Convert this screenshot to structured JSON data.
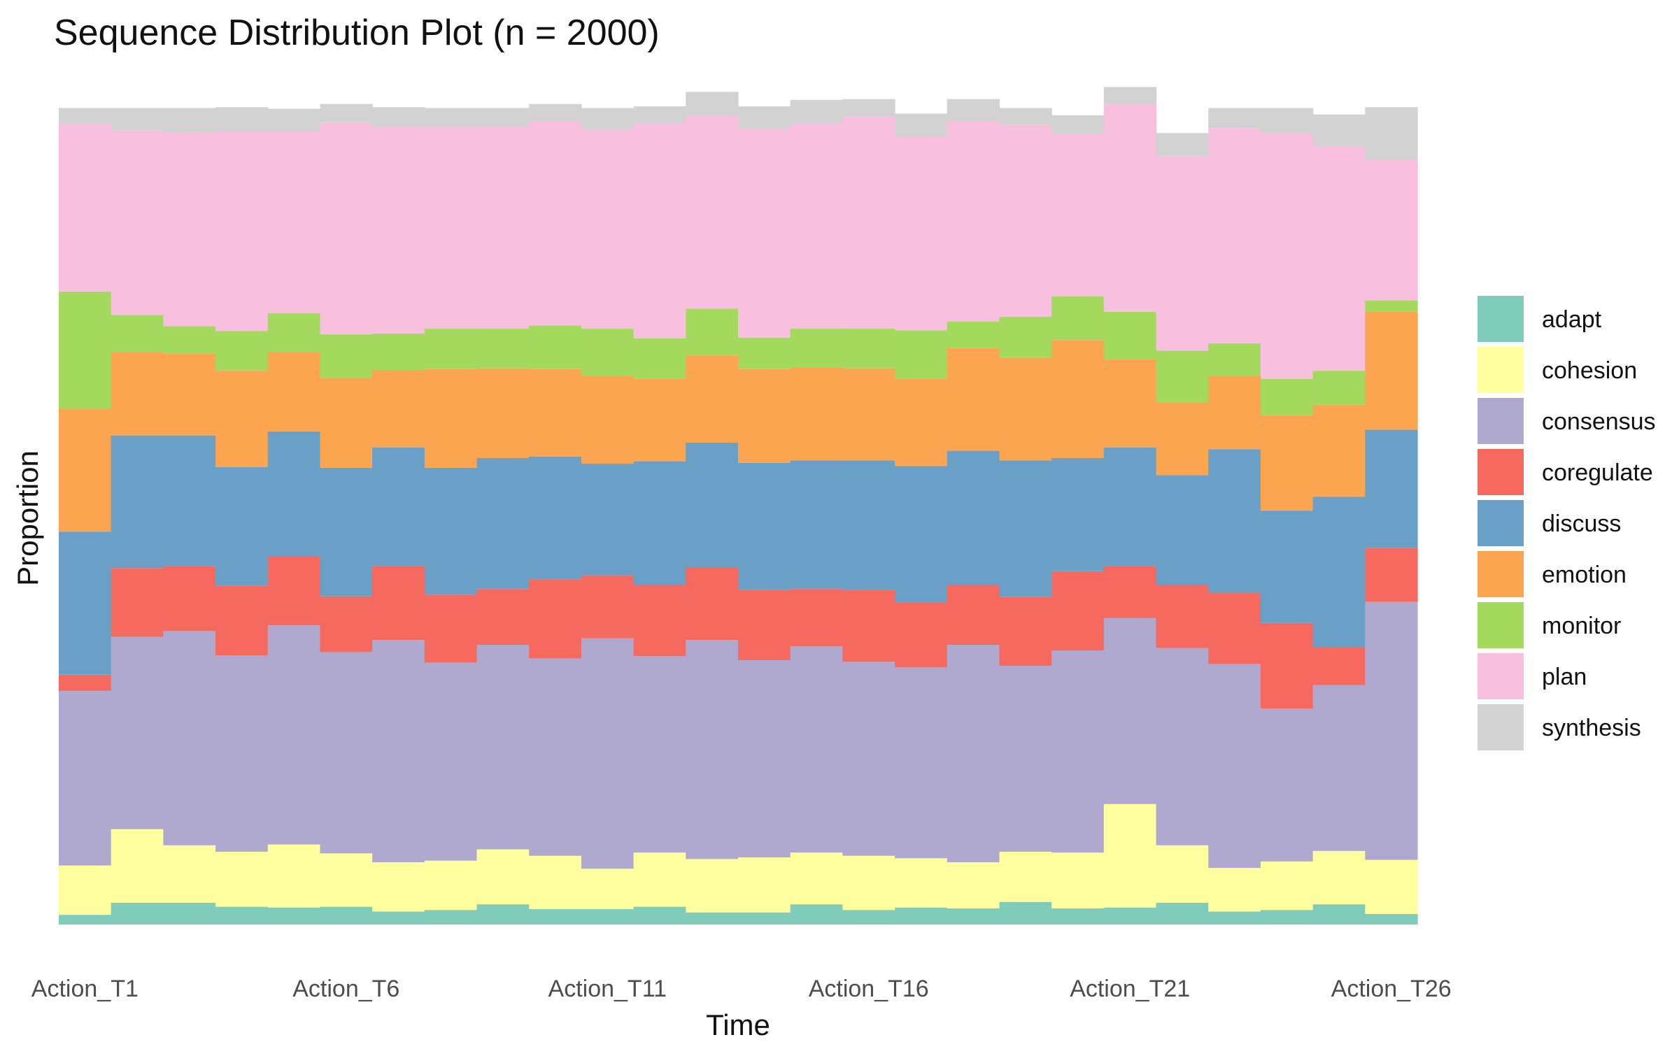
{
  "chart_data": {
    "type": "area",
    "title": "Sequence Distribution Plot (n = 2000)",
    "xlabel": "Time",
    "ylabel": "Proportion",
    "ylim": [
      0,
      1
    ],
    "grid": false,
    "legend_position": "right",
    "tick_labels": [
      "Action_T1",
      "Action_T6",
      "Action_T11",
      "Action_T16",
      "Action_T21",
      "Action_T26"
    ],
    "tick_index": [
      0,
      5,
      10,
      15,
      20,
      25
    ],
    "categories": [
      "Action_T1",
      "Action_T2",
      "Action_T3",
      "Action_T4",
      "Action_T5",
      "Action_T6",
      "Action_T7",
      "Action_T8",
      "Action_T9",
      "Action_T10",
      "Action_T11",
      "Action_T12",
      "Action_T13",
      "Action_T14",
      "Action_T15",
      "Action_T16",
      "Action_T17",
      "Action_T18",
      "Action_T19",
      "Action_T20",
      "Action_T21",
      "Action_T22",
      "Action_T23",
      "Action_T24",
      "Action_T25",
      "Action_T26"
    ],
    "series": [
      {
        "name": "adapt",
        "color": "#7fccbb",
        "values": [
          0.012,
          0.027,
          0.027,
          0.022,
          0.021,
          0.022,
          0.016,
          0.018,
          0.025,
          0.019,
          0.019,
          0.022,
          0.015,
          0.015,
          0.025,
          0.018,
          0.021,
          0.02,
          0.028,
          0.02,
          0.021,
          0.027,
          0.016,
          0.018,
          0.025,
          0.013
        ]
      },
      {
        "name": "cohesion",
        "color": "#ffff9f",
        "values": [
          0.061,
          0.091,
          0.071,
          0.068,
          0.078,
          0.066,
          0.061,
          0.061,
          0.068,
          0.066,
          0.05,
          0.067,
          0.066,
          0.068,
          0.064,
          0.067,
          0.061,
          0.057,
          0.062,
          0.069,
          0.128,
          0.071,
          0.054,
          0.06,
          0.066,
          0.067
        ]
      },
      {
        "name": "consensus",
        "color": "#b0a9cf",
        "values": [
          0.216,
          0.238,
          0.265,
          0.243,
          0.271,
          0.249,
          0.275,
          0.245,
          0.253,
          0.244,
          0.285,
          0.243,
          0.271,
          0.244,
          0.255,
          0.24,
          0.236,
          0.269,
          0.23,
          0.25,
          0.23,
          0.244,
          0.252,
          0.189,
          0.205,
          0.319
        ]
      },
      {
        "name": "coregulate",
        "color": "#f6695f",
        "values": [
          0.02,
          0.085,
          0.08,
          0.086,
          0.085,
          0.069,
          0.091,
          0.084,
          0.069,
          0.098,
          0.078,
          0.088,
          0.09,
          0.087,
          0.071,
          0.089,
          0.08,
          0.074,
          0.085,
          0.098,
          0.064,
          0.078,
          0.088,
          0.106,
          0.047,
          0.067
        ]
      },
      {
        "name": "discuss",
        "color": "#6aa0c7",
        "values": [
          0.177,
          0.164,
          0.162,
          0.147,
          0.155,
          0.159,
          0.147,
          0.157,
          0.162,
          0.152,
          0.138,
          0.153,
          0.154,
          0.157,
          0.159,
          0.16,
          0.169,
          0.166,
          0.169,
          0.14,
          0.147,
          0.136,
          0.178,
          0.139,
          0.186,
          0.146
        ]
      },
      {
        "name": "emotion",
        "color": "#fba551",
        "values": [
          0.152,
          0.103,
          0.101,
          0.119,
          0.098,
          0.111,
          0.096,
          0.122,
          0.111,
          0.108,
          0.109,
          0.102,
          0.108,
          0.116,
          0.115,
          0.114,
          0.108,
          0.127,
          0.127,
          0.146,
          0.109,
          0.09,
          0.091,
          0.118,
          0.114,
          0.146
        ]
      },
      {
        "name": "monitor",
        "color": "#a3d95c",
        "values": [
          0.145,
          0.046,
          0.034,
          0.049,
          0.048,
          0.054,
          0.045,
          0.05,
          0.049,
          0.054,
          0.058,
          0.05,
          0.058,
          0.039,
          0.048,
          0.049,
          0.06,
          0.033,
          0.051,
          0.054,
          0.059,
          0.064,
          0.04,
          0.045,
          0.042,
          0.014
        ]
      },
      {
        "name": "plan",
        "color": "#f8bfdf",
        "values": [
          0.207,
          0.228,
          0.24,
          0.247,
          0.225,
          0.262,
          0.256,
          0.249,
          0.25,
          0.253,
          0.246,
          0.266,
          0.239,
          0.258,
          0.254,
          0.262,
          0.239,
          0.248,
          0.237,
          0.201,
          0.257,
          0.24,
          0.266,
          0.304,
          0.278,
          0.174
        ]
      },
      {
        "name": "synthesis",
        "color": "#d2d2d2",
        "values": [
          0.02,
          0.028,
          0.03,
          0.03,
          0.028,
          0.023,
          0.024,
          0.024,
          0.023,
          0.021,
          0.027,
          0.021,
          0.029,
          0.028,
          0.029,
          0.022,
          0.029,
          0.027,
          0.021,
          0.023,
          0.021,
          0.029,
          0.025,
          0.031,
          0.039,
          0.065
        ]
      }
    ]
  }
}
